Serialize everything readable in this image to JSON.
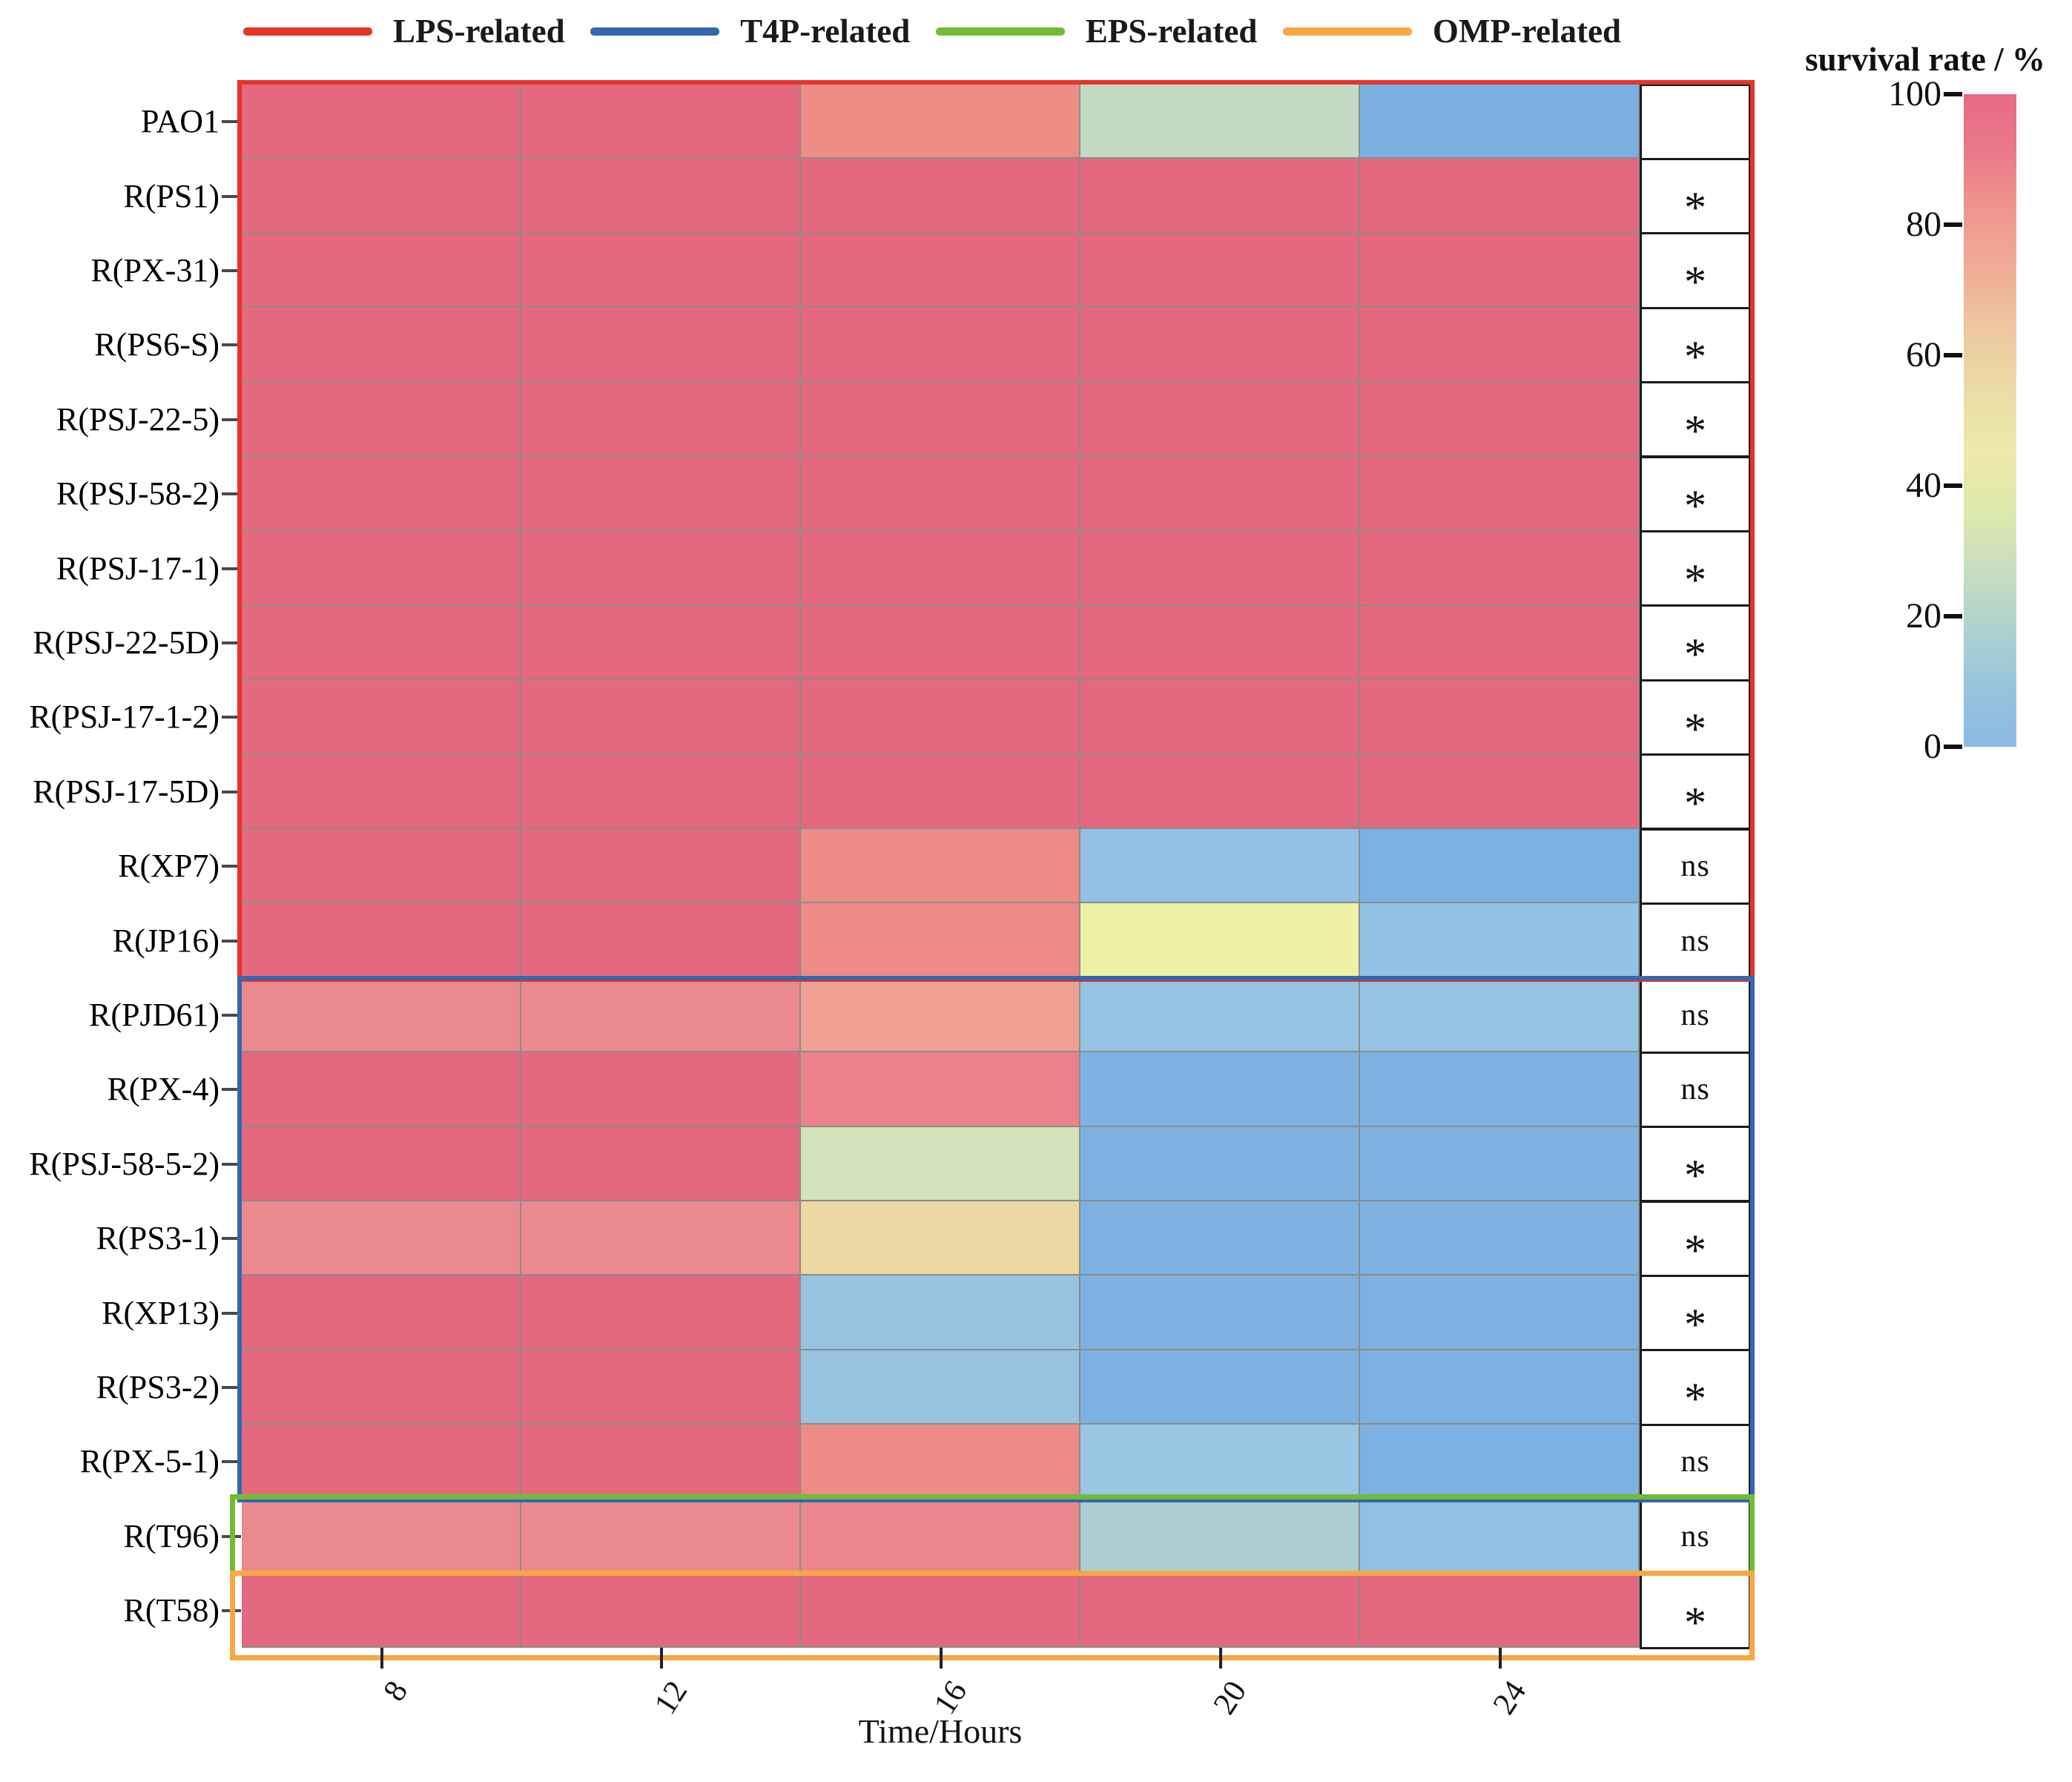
{
  "legend": {
    "items": [
      {
        "label": "LPS-related",
        "color": "#E5342A"
      },
      {
        "label": "T4P-related",
        "color": "#3467AE"
      },
      {
        "label": "EPS-related",
        "color": "#73BB36"
      },
      {
        "label": "OMP-related",
        "color": "#F5A843"
      }
    ]
  },
  "axis": {
    "x_title": "Time/Hours",
    "x_ticks": [
      "8",
      "12",
      "16",
      "20",
      "24"
    ]
  },
  "colorbar": {
    "title": "survival rate / %",
    "ticks": [
      "100",
      "80",
      "60",
      "40",
      "20",
      "0"
    ],
    "gradient_stops_top_to_bottom": [
      "#E76A85",
      "#EA7A8A",
      "#EF9890",
      "#F0AD97",
      "#EDC8A0",
      "#EBDCA6",
      "#EDE9A9",
      "#DFE9AB",
      "#C8DEC0",
      "#AED2CF",
      "#98C3DE",
      "#8CB9E5"
    ]
  },
  "chart_data": {
    "type": "heatmap",
    "title": "",
    "xlabel": "Time/Hours",
    "x": [
      8,
      12,
      16,
      20,
      24
    ],
    "value_unit": "survival rate %",
    "value_range": [
      0,
      100
    ],
    "rows": [
      {
        "label": "PAO1",
        "group": "LPS-related",
        "significance": "",
        "values": [
          100,
          100,
          86,
          27,
          3
        ],
        "colors": [
          "#E5697E",
          "#E5697E",
          "#EE8D86",
          "#C3DAC4",
          "#7CB0E2"
        ]
      },
      {
        "label": "R(PS1)",
        "group": "LPS-related",
        "significance": "*",
        "values": [
          100,
          100,
          100,
          100,
          100
        ],
        "colors": [
          "#E5697E",
          "#E5697E",
          "#E5697E",
          "#E5697E",
          "#E5697E"
        ]
      },
      {
        "label": "R(PX-31)",
        "group": "LPS-related",
        "significance": "*",
        "values": [
          100,
          100,
          100,
          100,
          100
        ],
        "colors": [
          "#E5697E",
          "#E5697E",
          "#E5697E",
          "#E5697E",
          "#E5697E"
        ]
      },
      {
        "label": "R(PS6-S)",
        "group": "LPS-related",
        "significance": "*",
        "values": [
          100,
          100,
          100,
          100,
          100
        ],
        "colors": [
          "#E5697E",
          "#E5697E",
          "#E5697E",
          "#E5697E",
          "#E5697E"
        ]
      },
      {
        "label": "R(PSJ-22-5)",
        "group": "LPS-related",
        "significance": "*",
        "values": [
          100,
          100,
          100,
          100,
          100
        ],
        "colors": [
          "#E5697E",
          "#E5697E",
          "#E5697E",
          "#E5697E",
          "#E5697E"
        ]
      },
      {
        "label": "R(PSJ-58-2)",
        "group": "LPS-related",
        "significance": "*",
        "values": [
          100,
          100,
          100,
          100,
          100
        ],
        "colors": [
          "#E5697E",
          "#E5697E",
          "#E5697E",
          "#E5697E",
          "#E5697E"
        ]
      },
      {
        "label": "R(PSJ-17-1)",
        "group": "LPS-related",
        "significance": "*",
        "values": [
          100,
          100,
          100,
          100,
          100
        ],
        "colors": [
          "#E5697E",
          "#E5697E",
          "#E5697E",
          "#E5697E",
          "#E5697E"
        ]
      },
      {
        "label": "R(PSJ-22-5D)",
        "group": "LPS-related",
        "significance": "*",
        "values": [
          100,
          100,
          100,
          100,
          100
        ],
        "colors": [
          "#E5697E",
          "#E5697E",
          "#E5697E",
          "#E5697E",
          "#E5697E"
        ]
      },
      {
        "label": "R(PSJ-17-1-2)",
        "group": "LPS-related",
        "significance": "*",
        "values": [
          100,
          100,
          100,
          100,
          100
        ],
        "colors": [
          "#E5697E",
          "#E5697E",
          "#E5697E",
          "#E5697E",
          "#E5697E"
        ]
      },
      {
        "label": "R(PSJ-17-5D)",
        "group": "LPS-related",
        "significance": "*",
        "values": [
          100,
          100,
          100,
          100,
          100
        ],
        "colors": [
          "#E5697E",
          "#E5697E",
          "#E5697E",
          "#E5697E",
          "#E5697E"
        ]
      },
      {
        "label": "R(XP7)",
        "group": "LPS-related",
        "significance": "ns",
        "values": [
          100,
          100,
          87,
          13,
          4
        ],
        "colors": [
          "#E5697E",
          "#E5697E",
          "#ED8B87",
          "#93C1E3",
          "#7CB1E3"
        ]
      },
      {
        "label": "R(JP16)",
        "group": "LPS-related",
        "significance": "ns",
        "values": [
          100,
          100,
          87,
          45,
          11
        ],
        "colors": [
          "#E5697E",
          "#E5697E",
          "#ED8B87",
          "#EDF0A5",
          "#93C2E4"
        ]
      },
      {
        "label": "R(PJD61)",
        "group": "T4P-related",
        "significance": "ns",
        "values": [
          91,
          91,
          78,
          13,
          13
        ],
        "colors": [
          "#EA8A8E",
          "#EA8A8E",
          "#F0A092",
          "#97C3E3",
          "#97C3E3"
        ]
      },
      {
        "label": "R(PX-4)",
        "group": "T4P-related",
        "significance": "ns",
        "values": [
          100,
          100,
          89,
          6,
          6
        ],
        "colors": [
          "#E5697E",
          "#E5697E",
          "#EB8289",
          "#7FB3E3",
          "#7FB3E3"
        ]
      },
      {
        "label": "R(PSJ-58-5-2)",
        "group": "T4P-related",
        "significance": "*",
        "values": [
          100,
          100,
          34,
          5,
          5
        ],
        "colors": [
          "#E5697E",
          "#E5697E",
          "#D2E2BA",
          "#7DB2E2",
          "#7DB2E2"
        ]
      },
      {
        "label": "R(PS3-1)",
        "group": "T4P-related",
        "significance": "*",
        "values": [
          91,
          91,
          56,
          5,
          5
        ],
        "colors": [
          "#EA8A8E",
          "#EA8A8E",
          "#EBD8A2",
          "#7DB2E2",
          "#7DB2E2"
        ]
      },
      {
        "label": "R(XP13)",
        "group": "T4P-related",
        "significance": "*",
        "values": [
          100,
          100,
          13,
          4,
          4
        ],
        "colors": [
          "#E5697E",
          "#E5697E",
          "#97C3E1",
          "#7CB1E2",
          "#7CB1E2"
        ]
      },
      {
        "label": "R(PS3-2)",
        "group": "T4P-related",
        "significance": "*",
        "values": [
          100,
          100,
          13,
          4,
          4
        ],
        "colors": [
          "#E5697E",
          "#E5697E",
          "#97C3E1",
          "#7CB1E2",
          "#7CB1E2"
        ]
      },
      {
        "label": "R(PX-5-1)",
        "group": "T4P-related",
        "significance": "ns",
        "values": [
          100,
          100,
          87,
          11,
          5
        ],
        "colors": [
          "#E5697E",
          "#E5697E",
          "#ED8B87",
          "#99C6E3",
          "#7CB1E3"
        ]
      },
      {
        "label": "R(T96)",
        "group": "EPS-related",
        "significance": "ns",
        "values": [
          91,
          91,
          89,
          18,
          10
        ],
        "colors": [
          "#EA8A8E",
          "#EA8A8E",
          "#EC868C",
          "#ACCDD4",
          "#90C1E4"
        ]
      },
      {
        "label": "R(T58)",
        "group": "OMP-related",
        "significance": "*",
        "values": [
          100,
          100,
          100,
          100,
          100
        ],
        "colors": [
          "#E5697E",
          "#E5697E",
          "#E5697E",
          "#E5697E",
          "#E5697E"
        ]
      }
    ]
  }
}
